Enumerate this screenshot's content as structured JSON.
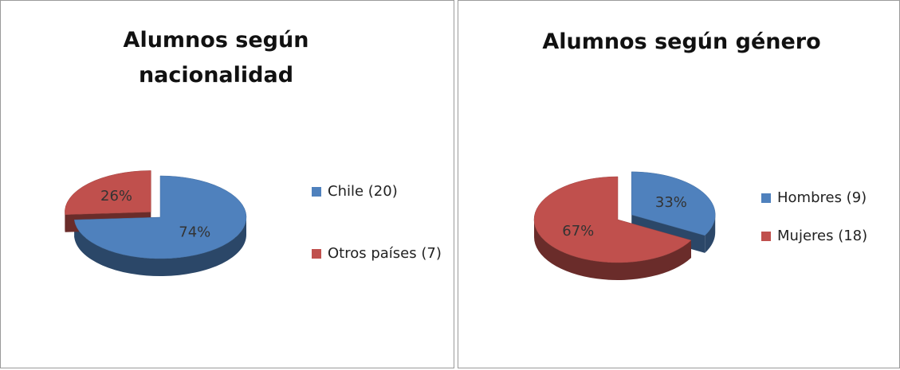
{
  "chart_data": [
    {
      "type": "pie",
      "title": "Alumnos según nacionalidad",
      "categories": [
        "Chile (20)",
        "Otros países (7)"
      ],
      "values": [
        74,
        26
      ],
      "value_labels": [
        "74%",
        "26%"
      ],
      "colors": [
        "#4f81bd",
        "#c0504d"
      ]
    },
    {
      "type": "pie",
      "title": "Alumnos según género",
      "categories": [
        "Hombres (9)",
        "Mujeres (18)"
      ],
      "values": [
        33,
        67
      ],
      "value_labels": [
        "33%",
        "67%"
      ],
      "colors": [
        "#4f81bd",
        "#c0504d"
      ]
    }
  ]
}
